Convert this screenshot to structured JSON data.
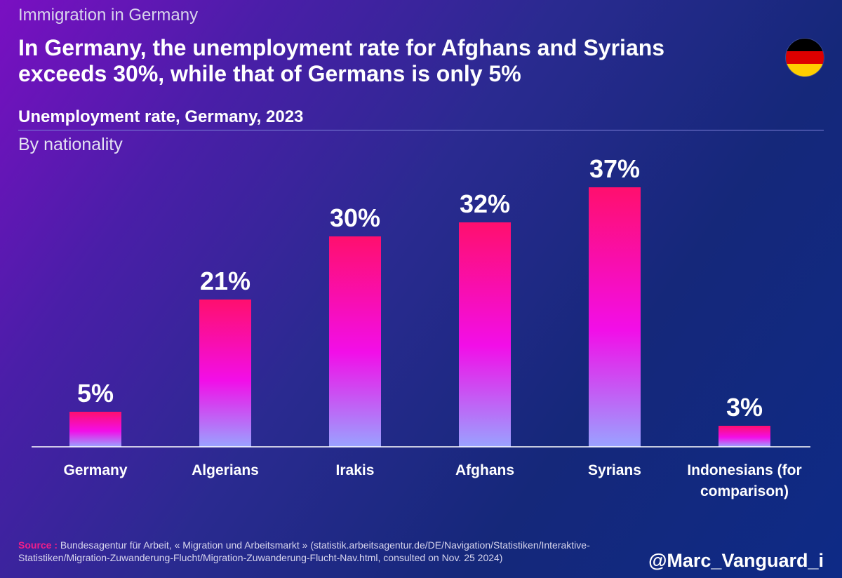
{
  "header": {
    "kicker": "Immigration in Germany",
    "title": "In Germany, the unemployment rate for Afghans and Syrians exceeds 30%, while that of Germans is only 5%",
    "subtitle": "Unemployment rate, Germany, 2023",
    "subnote": "By nationality"
  },
  "flag": {
    "colors": [
      "#000000",
      "#dd0000",
      "#ffce00"
    ]
  },
  "chart_data": {
    "type": "bar",
    "title": "Unemployment rate, Germany, 2023",
    "subtitle": "By nationality",
    "categories": [
      "Germany",
      "Algerians",
      "Irakis",
      "Afghans",
      "Syrians",
      "Indonesians (for comparison)"
    ],
    "values": [
      5,
      21,
      30,
      32,
      37,
      3
    ],
    "value_labels": [
      "5%",
      "21%",
      "30%",
      "32%",
      "37%",
      "3%"
    ],
    "ylim": [
      0,
      37
    ],
    "grid": false,
    "colors": {
      "bar_top": "#ff0f6e",
      "bar_mid": "#f20ee8",
      "bar_bottom": "#9aa2ff",
      "axis": "#ffffff"
    }
  },
  "footer": {
    "source_label": "Source :",
    "source_text": "Bundesagentur für Arbeit, « Migration und Arbeitsmarkt » (statistik.arbeitsagentur.de/DE/Navigation/Statistiken/Interaktive-Statistiken/Migration-Zuwanderung-Flucht/Migration-Zuwanderung-Flucht-Nav.html, consulted on Nov. 25 2024)",
    "handle": "@Marc_Vanguard_i"
  }
}
